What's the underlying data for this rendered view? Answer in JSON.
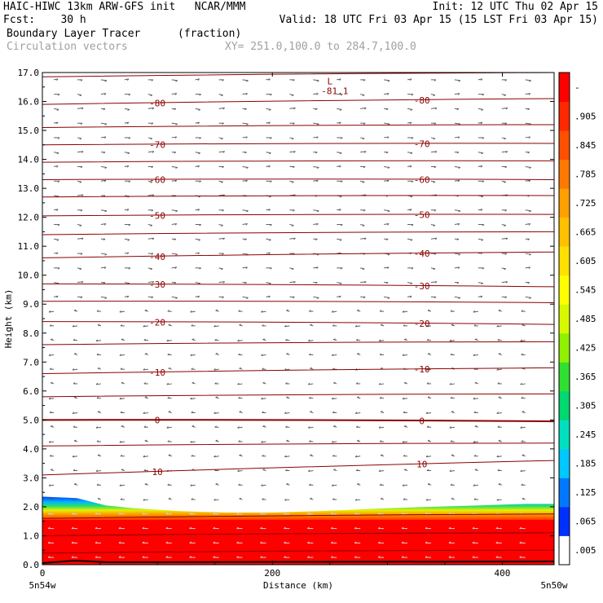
{
  "header": {
    "line1_left": "HAIC-HIWC 13km ARW-GFS init   NCAR/MMM",
    "line1_right": "Init: 12 UTC Thu 02 Apr 15",
    "line2_left": "Fcst:    30 h",
    "line2_right": "Valid: 18 UTC Fri 03 Apr 15 (15 LST Fri 03 Apr 15)",
    "field_name": "Boundary Layer Tracer",
    "field_units": "(fraction)",
    "vectors_label": "Circulation vectors",
    "xy_label": "XY= 251.0,100.0 to 284.7,100.0"
  },
  "chart_data": {
    "type": "heatmap",
    "xlabel": "Distance (km)",
    "ylabel": "Height (km)",
    "xlim": [
      0,
      445
    ],
    "ylim": [
      0,
      17
    ],
    "x_ticks": [
      "0",
      "200",
      "400"
    ],
    "x_end_labels": {
      "left": "5n54w",
      "right": "5n50w"
    },
    "y_ticks": [
      "0.0",
      "1.0",
      "2.0",
      "3.0",
      "4.0",
      "5.0",
      "6.0",
      "7.0",
      "8.0",
      "9.0",
      "10.0",
      "11.0",
      "12.0",
      "13.0",
      "14.0",
      "15.0",
      "16.0",
      "17.0"
    ],
    "colorbar": {
      "labels": [
        ".005",
        ".065",
        ".125",
        ".185",
        ".245",
        ".305",
        ".365",
        ".425",
        ".485",
        ".545",
        ".605",
        ".665",
        ".725",
        ".785",
        ".845",
        ".905",
        "-"
      ],
      "colors": [
        "#ffffff",
        "#0030ff",
        "#0078ff",
        "#00c8ff",
        "#00e0c0",
        "#00d870",
        "#30e030",
        "#90f000",
        "#d8f800",
        "#ffff00",
        "#ffe000",
        "#ffc000",
        "#ffa000",
        "#ff7800",
        "#ff5000",
        "#ff2800",
        "#ff0000"
      ]
    },
    "tracer_top_km": {
      "x": [
        0,
        30,
        55,
        80,
        120,
        160,
        200,
        240,
        270,
        300,
        340,
        380,
        420,
        445
      ],
      "y": [
        2.35,
        2.3,
        2.05,
        1.95,
        1.85,
        1.8,
        1.8,
        1.85,
        1.9,
        1.95,
        2.0,
        2.05,
        2.1,
        2.1
      ]
    },
    "temperature_contours": [
      {
        "label": "10",
        "left_y": 3.1,
        "right_y": 3.6
      },
      {
        "label": "0",
        "left_y": 5.0,
        "right_y": 4.95
      },
      {
        "label": "-10",
        "left_y": 6.6,
        "right_y": 6.8
      },
      {
        "label": "-20",
        "left_y": 8.4,
        "right_y": 8.3
      },
      {
        "label": "-30",
        "left_y": 9.7,
        "right_y": 9.6
      },
      {
        "label": "-40",
        "left_y": 10.6,
        "right_y": 10.8
      },
      {
        "label": "-50",
        "left_y": 12.05,
        "right_y": 12.1
      },
      {
        "label": "-60",
        "left_y": 13.3,
        "right_y": 13.3
      },
      {
        "label": "-70",
        "left_y": 14.5,
        "right_y": 14.55
      },
      {
        "label": "-80",
        "left_y": 15.9,
        "right_y": 16.1
      }
    ],
    "extra_isotherms": [
      {
        "left_y": 0.4,
        "right_y": 0.5
      },
      {
        "left_y": 1.0,
        "right_y": 1.1
      },
      {
        "left_y": 1.6,
        "right_y": 1.75
      },
      {
        "left_y": 4.1,
        "right_y": 4.2
      },
      {
        "left_y": 5.8,
        "right_y": 5.9
      },
      {
        "left_y": 7.6,
        "right_y": 7.7
      },
      {
        "left_y": 9.1,
        "right_y": 9.05
      },
      {
        "left_y": 11.4,
        "right_y": 11.5
      },
      {
        "left_y": 12.7,
        "right_y": 12.75
      },
      {
        "left_y": 13.9,
        "right_y": 13.95
      },
      {
        "left_y": 15.1,
        "right_y": 15.2
      },
      {
        "left_y": 16.85,
        "right_y": 17.0
      }
    ],
    "low_marker": {
      "symbol": "L",
      "value": "-81.1",
      "x": 250,
      "y": 16.7
    },
    "contour_color": "#8b0000",
    "vector_color": "#606060"
  }
}
